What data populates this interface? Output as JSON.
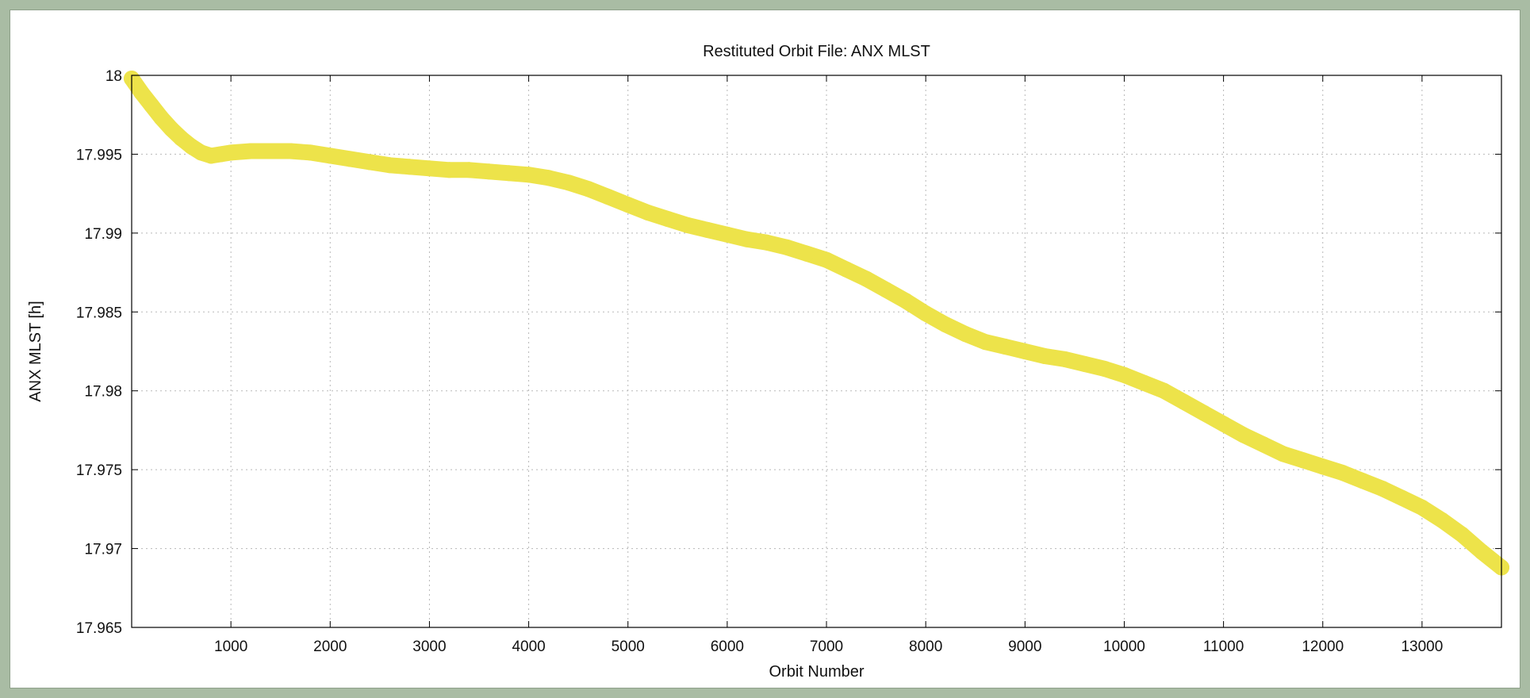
{
  "chart_data": {
    "type": "line",
    "title": "Restituted Orbit File: ANX MLST",
    "xlabel": "Orbit Number",
    "ylabel": "ANX MLST [h]",
    "xlim": [
      0,
      13800
    ],
    "ylim": [
      17.965,
      18
    ],
    "xticks": [
      1000,
      2000,
      3000,
      4000,
      5000,
      6000,
      7000,
      8000,
      9000,
      10000,
      11000,
      12000,
      13000
    ],
    "xtick_labels": [
      "1000",
      "2000",
      "3000",
      "4000",
      "5000",
      "6000",
      "7000",
      "8000",
      "9000",
      "10000",
      "11000",
      "12000",
      "13000"
    ],
    "yticks": [
      17.965,
      17.97,
      17.975,
      17.98,
      17.985,
      17.99,
      17.995,
      18
    ],
    "ytick_labels": [
      "17.965",
      "17.97",
      "17.975",
      "17.98",
      "17.985",
      "17.99",
      "17.995",
      "18"
    ],
    "grid": true,
    "series": [
      {
        "color": "#ede34a",
        "x": [
          0,
          100,
          200,
          300,
          400,
          500,
          600,
          700,
          800,
          900,
          1000,
          1200,
          1400,
          1600,
          1800,
          2000,
          2200,
          2400,
          2600,
          2800,
          3000,
          3200,
          3400,
          3600,
          3800,
          4000,
          4200,
          4400,
          4600,
          4800,
          5000,
          5200,
          5400,
          5600,
          5800,
          6000,
          6200,
          6400,
          6600,
          6800,
          7000,
          7200,
          7400,
          7600,
          7800,
          8000,
          8200,
          8400,
          8600,
          8800,
          9000,
          9200,
          9400,
          9600,
          9800,
          10000,
          10200,
          10400,
          10600,
          10800,
          11000,
          11200,
          11400,
          11600,
          11800,
          12000,
          12200,
          12400,
          12600,
          12800,
          13000,
          13200,
          13400,
          13600,
          13800
        ],
        "y": [
          17.9998,
          17.9989,
          17.9981,
          17.9973,
          17.9966,
          17.996,
          17.9955,
          17.9951,
          17.9949,
          17.995,
          17.9951,
          17.9952,
          17.9952,
          17.9952,
          17.9951,
          17.9949,
          17.9947,
          17.9945,
          17.9943,
          17.9942,
          17.9941,
          17.994,
          17.994,
          17.9939,
          17.9938,
          17.9937,
          17.9935,
          17.9932,
          17.9928,
          17.9923,
          17.9918,
          17.9913,
          17.9909,
          17.9905,
          17.9902,
          17.9899,
          17.9896,
          17.9894,
          17.9891,
          17.9887,
          17.9883,
          17.9877,
          17.9871,
          17.9864,
          17.9857,
          17.9849,
          17.9842,
          17.9836,
          17.9831,
          17.9828,
          17.9825,
          17.9822,
          17.982,
          17.9817,
          17.9814,
          17.981,
          17.9805,
          17.98,
          17.9793,
          17.9786,
          17.9779,
          17.9772,
          17.9766,
          17.976,
          17.9756,
          17.9752,
          17.9748,
          17.9743,
          17.9738,
          17.9732,
          17.9726,
          17.9718,
          17.9709,
          17.9698,
          17.9688
        ]
      }
    ]
  }
}
